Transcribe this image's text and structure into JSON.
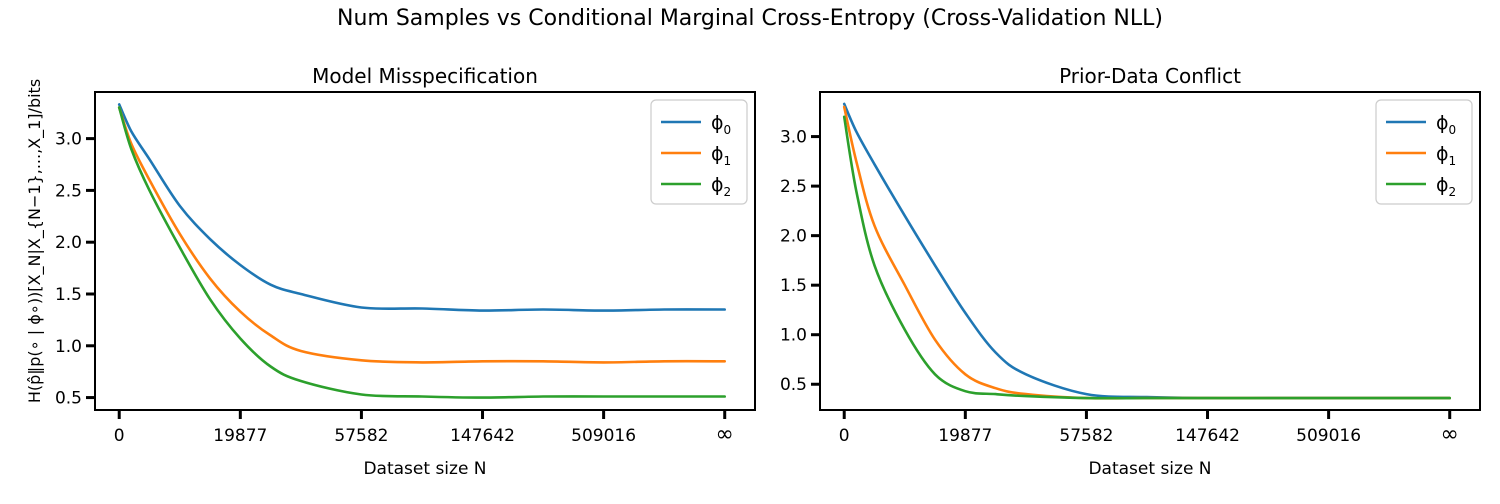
{
  "figure": {
    "suptitle": "Num Samples vs Conditional Marginal Cross-Entropy (Cross-Validation NLL)"
  },
  "chart_data": [
    {
      "type": "line",
      "title": "Model Misspecification",
      "xlabel": "Dataset size N",
      "ylabel": "H(p̂‖p(∘ | ϕ∘))[X_N|X_{N−1},...,X_1]/bits",
      "xtick_labels": [
        "0",
        "19877",
        "57582",
        "147642",
        "509016",
        "∞"
      ],
      "ytick_values": [
        0.5,
        1.0,
        1.5,
        2.0,
        2.5,
        3.0
      ],
      "ytick_labels": [
        "0.5",
        "1.0",
        "1.5",
        "2.0",
        "2.5",
        "3.0"
      ],
      "xlim": [
        -0.2,
        5.25
      ],
      "ylim": [
        0.38,
        3.45
      ],
      "legend_position": "top-right",
      "x": [
        0,
        0.1,
        0.25,
        0.5,
        0.75,
        1,
        1.25,
        1.5,
        2,
        2.5,
        3,
        3.5,
        4,
        4.5,
        5
      ],
      "series": [
        {
          "name": "ϕ",
          "sub": "0",
          "color": "#1f77b4",
          "values": [
            3.33,
            3.07,
            2.8,
            2.35,
            2.03,
            1.78,
            1.59,
            1.5,
            1.37,
            1.36,
            1.34,
            1.35,
            1.34,
            1.35,
            1.35
          ]
        },
        {
          "name": "ϕ",
          "sub": "1",
          "color": "#ff7f0e",
          "values": [
            3.3,
            2.95,
            2.6,
            2.08,
            1.65,
            1.33,
            1.1,
            0.95,
            0.86,
            0.84,
            0.85,
            0.85,
            0.84,
            0.85,
            0.85
          ]
        },
        {
          "name": "ϕ",
          "sub": "2",
          "color": "#2ca02c",
          "values": [
            3.3,
            2.9,
            2.5,
            1.95,
            1.45,
            1.07,
            0.8,
            0.66,
            0.53,
            0.51,
            0.5,
            0.51,
            0.51,
            0.51,
            0.51
          ]
        }
      ]
    },
    {
      "type": "line",
      "title": "Prior-Data Conflict",
      "xlabel": "Dataset size N",
      "ylabel": "",
      "xtick_labels": [
        "0",
        "19877",
        "57582",
        "147642",
        "509016",
        "∞"
      ],
      "ytick_values": [
        0.5,
        1.0,
        1.5,
        2.0,
        2.5,
        3.0
      ],
      "ytick_labels": [
        "0.5",
        "1.0",
        "1.5",
        "2.0",
        "2.5",
        "3.0"
      ],
      "xlim": [
        -0.2,
        5.25
      ],
      "ylim": [
        0.24,
        3.45
      ],
      "legend_position": "top-right",
      "x": [
        0,
        0.1,
        0.25,
        0.5,
        0.75,
        1,
        1.25,
        1.5,
        2,
        2.5,
        3,
        3.5,
        4,
        4.5,
        5
      ],
      "series": [
        {
          "name": "ϕ",
          "sub": "0",
          "color": "#1f77b4",
          "values": [
            3.33,
            3.05,
            2.72,
            2.2,
            1.7,
            1.22,
            0.82,
            0.6,
            0.4,
            0.37,
            0.36,
            0.36,
            0.36,
            0.36,
            0.36
          ]
        },
        {
          "name": "ϕ",
          "sub": "1",
          "color": "#ff7f0e",
          "values": [
            3.3,
            2.75,
            2.1,
            1.5,
            0.95,
            0.6,
            0.46,
            0.4,
            0.36,
            0.36,
            0.36,
            0.36,
            0.36,
            0.36,
            0.36
          ]
        },
        {
          "name": "ϕ",
          "sub": "2",
          "color": "#2ca02c",
          "values": [
            3.2,
            2.45,
            1.7,
            1.05,
            0.6,
            0.43,
            0.4,
            0.38,
            0.36,
            0.36,
            0.36,
            0.36,
            0.36,
            0.36,
            0.36
          ]
        }
      ]
    }
  ]
}
